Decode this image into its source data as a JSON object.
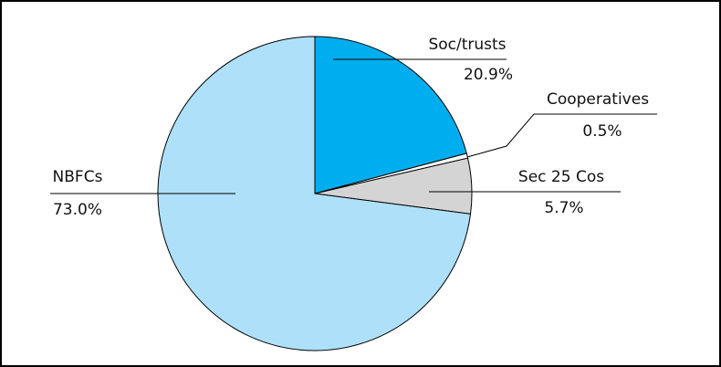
{
  "chart_data": {
    "type": "pie",
    "categories": [
      "Soc/trusts",
      "Cooperatives",
      "Sec 25 Cos",
      "NBFCs"
    ],
    "values": [
      20.9,
      0.5,
      5.7,
      73.0
    ],
    "value_labels": [
      "20.9%",
      "0.5%",
      "5.7%",
      "73.0%"
    ],
    "colors": [
      "#00aeef",
      "#ffffff",
      "#d4d4d4",
      "#aee0f9"
    ]
  }
}
